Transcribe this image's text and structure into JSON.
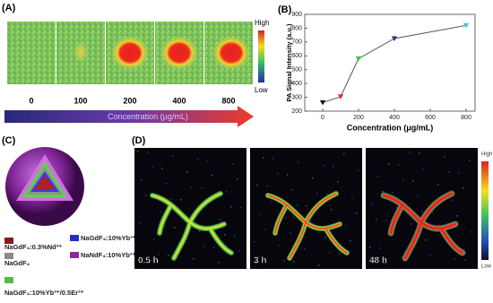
{
  "panel_a": {
    "label": "(A)",
    "concentrations": [
      "0",
      "100",
      "200",
      "400",
      "800"
    ],
    "colorbar_high": "High",
    "colorbar_low": "Low",
    "arrow_label": "Concentration (μg/mL)"
  },
  "chart_data": {
    "type": "line",
    "panel_label": "(B)",
    "x_label": "Concentration (μg/mL)",
    "y_label": "PA Signal Intensity (a.u.)",
    "x": [
      0,
      100,
      200,
      400,
      800
    ],
    "values": [
      262,
      305,
      580,
      725,
      820
    ],
    "point_colors": [
      "#111111",
      "#e03030",
      "#40c040",
      "#30308a",
      "#40c8e0"
    ],
    "line_color": "#555555",
    "xlim": [
      -100,
      850
    ],
    "ylim": [
      200,
      900
    ],
    "xticks": [
      0,
      200,
      400,
      600,
      800
    ],
    "yticks": [
      200,
      300,
      400,
      500,
      600,
      700,
      800,
      900
    ]
  },
  "panel_c": {
    "label": "(C)",
    "legend": [
      {
        "name": "NaGdF₄:0.3%Nd³⁺",
        "color": "#8a1a1a"
      },
      {
        "name": "NaGdF₄:10%Yb³⁺",
        "color": "#2a2ad0"
      },
      {
        "name": "NaGdF₄",
        "color": "#8a8a8a"
      },
      {
        "name": "NaNdF₄:10%Yb³⁺",
        "color": "#8a2a9a"
      },
      {
        "name": "NaGdF₄:10%Yb³⁺/0.5Er³⁺",
        "color": "#50c040"
      }
    ]
  },
  "panel_d": {
    "label": "(D)",
    "times": [
      "0.5 h",
      "3 h",
      "48 h"
    ],
    "colorbar_high": "High",
    "colorbar_low": "Low"
  }
}
